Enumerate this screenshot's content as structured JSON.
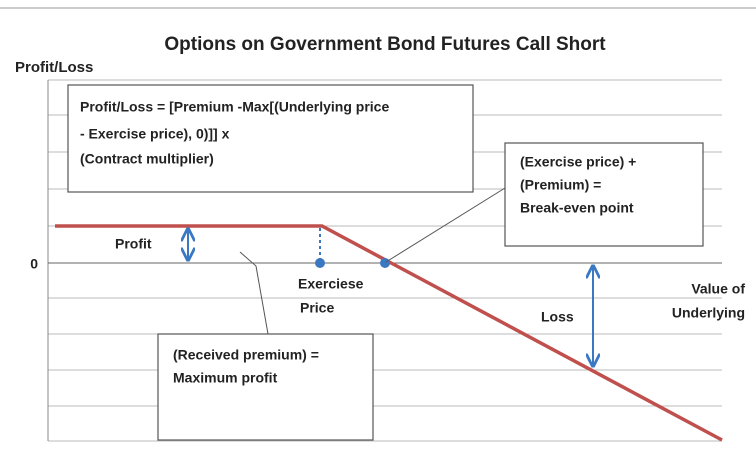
{
  "title": "Options on Government Bond Futures Call Short",
  "y_axis_label": "Profit/Loss",
  "zero_label": "0",
  "x_axis_label": [
    "Value of",
    "Underlying"
  ],
  "labels": {
    "profit": "Profit",
    "exercise_price": [
      "Exerciese",
      "Price"
    ],
    "loss": "Loss"
  },
  "boxes": {
    "formula": [
      "Profit/Loss = [Premium -Max[(Underlying price",
      "- Exercise price), 0)]] x",
      "(Contract multiplier)"
    ],
    "break_even": [
      "(Exercise price) +",
      "(Premium) =",
      "Break-even point"
    ],
    "max_profit": [
      "(Received premium) =",
      "Maximum profit"
    ]
  }
}
